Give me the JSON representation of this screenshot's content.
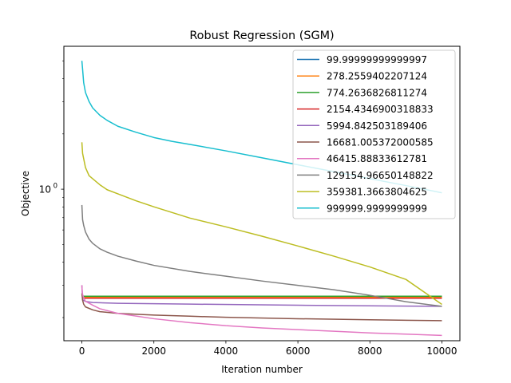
{
  "chart_data": {
    "type": "line",
    "title": "Robust Regression (SGM)",
    "xlabel": "Iteration number",
    "ylabel": "Objective",
    "xlim": [
      -500,
      10500
    ],
    "ylim": [
      0.1496,
      6.0
    ],
    "yscale": "log",
    "grid": false,
    "legend_position": "top-right",
    "x_ticks": [
      0,
      2000,
      4000,
      6000,
      8000,
      10000
    ],
    "x_tick_labels": [
      "0",
      "2000",
      "4000",
      "6000",
      "8000",
      "10000"
    ],
    "y_major_ticks": [
      1
    ],
    "y_tick_labels": [
      {
        "base": "10",
        "exponent": "0"
      }
    ],
    "y_minor_ticks": [
      0.2,
      0.3,
      0.4,
      0.5,
      0.6,
      0.7,
      0.8,
      0.9,
      2,
      3,
      4,
      5
    ],
    "series": [
      {
        "name": "99.99999999999997",
        "color": "#1f77b4",
        "x": [
          0,
          5,
          20,
          100,
          10000
        ],
        "y": [
          0.2612,
          0.2612,
          0.2612,
          0.2612,
          0.2612
        ]
      },
      {
        "name": "278.2559402207124",
        "color": "#ff7f0e",
        "x": [
          0,
          5,
          20,
          100,
          10000
        ],
        "y": [
          0.2586,
          0.2586,
          0.2586,
          0.2586,
          0.2586
        ]
      },
      {
        "name": "774.2636826811274",
        "color": "#2ca02c",
        "x": [
          0,
          5,
          20,
          100,
          10000
        ],
        "y": [
          0.2612,
          0.2612,
          0.2612,
          0.2612,
          0.2612
        ]
      },
      {
        "name": "2154.4346900318833",
        "color": "#d62728",
        "x": [
          0,
          5,
          20,
          100,
          10000
        ],
        "y": [
          0.2549,
          0.2549,
          0.2549,
          0.2549,
          0.2549
        ]
      },
      {
        "name": "5994.842503189406",
        "color": "#9467bd",
        "x": [
          0,
          20,
          100,
          300,
          1000,
          3000,
          6000,
          10000
        ],
        "y": [
          0.3,
          0.25,
          0.2449,
          0.2415,
          0.2392,
          0.2367,
          0.2334,
          0.2302
        ]
      },
      {
        "name": "16681.005372000585",
        "color": "#8c564b",
        "x": [
          0,
          20,
          50,
          100,
          300,
          500,
          1000,
          2000,
          3000,
          4000,
          6000,
          8000,
          10000
        ],
        "y": [
          0.2712,
          0.2488,
          0.2364,
          0.2286,
          0.2203,
          0.2153,
          0.2108,
          0.2062,
          0.2034,
          0.2006,
          0.1971,
          0.1945,
          0.1923
        ]
      },
      {
        "name": "46415.88833612781",
        "color": "#e377c2",
        "x": [
          0,
          5,
          20,
          50,
          100,
          300,
          500,
          1000,
          2000,
          3000,
          4000,
          5000,
          6000,
          7000,
          8000,
          9000,
          10000
        ],
        "y": [
          0.3,
          0.2837,
          0.2669,
          0.2569,
          0.2454,
          0.2336,
          0.2234,
          0.2108,
          0.1971,
          0.1877,
          0.1806,
          0.1756,
          0.1719,
          0.1684,
          0.1649,
          0.1624,
          0.1598
        ]
      },
      {
        "name": "129154.96650148822",
        "color": "#7f7f7f",
        "x": [
          0,
          20,
          50,
          100,
          200,
          300,
          500,
          700,
          1000,
          1500,
          2000,
          3000,
          4000,
          5000,
          6000,
          7000,
          8000,
          9000,
          10000
        ],
        "y": [
          0.82,
          0.6824,
          0.635,
          0.5849,
          0.5341,
          0.5072,
          0.4736,
          0.4538,
          0.4317,
          0.4062,
          0.3848,
          0.3566,
          0.3358,
          0.3162,
          0.2994,
          0.2835,
          0.2644,
          0.2439,
          0.2302
        ]
      },
      {
        "name": "359381.3663804625",
        "color": "#bcbd22",
        "x": [
          0,
          20,
          100,
          200,
          500,
          700,
          1000,
          1500,
          2000,
          3000,
          4000,
          5000,
          6000,
          7000,
          8000,
          9000,
          10000
        ],
        "y": [
          1.8,
          1.566,
          1.3123,
          1.1839,
          1.0569,
          0.9936,
          0.9437,
          0.8655,
          0.8018,
          0.6962,
          0.6236,
          0.5549,
          0.4905,
          0.4317,
          0.3772,
          0.3227,
          0.2359
        ]
      },
      {
        "name": "999999.9999999999",
        "color": "#17becf",
        "x": [
          0,
          20,
          50,
          100,
          200,
          300,
          500,
          700,
          1000,
          1500,
          2000,
          2500,
          3000,
          4000,
          5000,
          6000,
          7000,
          8000,
          9000,
          10000
        ],
        "y": [
          5.0,
          4.5,
          3.8,
          3.364,
          3.0,
          2.7714,
          2.5252,
          2.3706,
          2.201,
          2.0435,
          1.9114,
          1.8226,
          1.7535,
          1.617,
          1.4819,
          1.3584,
          1.2453,
          1.1413,
          1.0465,
          0.9555
        ]
      }
    ]
  }
}
